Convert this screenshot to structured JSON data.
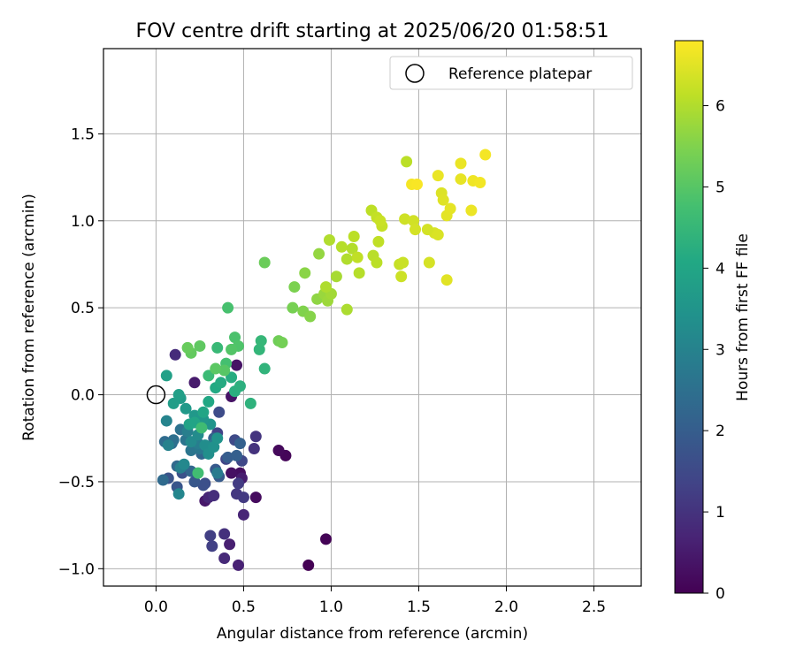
{
  "chart_data": {
    "type": "scatter",
    "title": "FOV centre drift starting at 2025/06/20 01:58:51",
    "xlabel": "Angular distance from reference (arcmin)",
    "ylabel": "Rotation from reference (arcmin)",
    "xlim": [
      -0.3,
      2.77
    ],
    "ylim": [
      -1.1,
      1.99
    ],
    "x_ticks": [
      0.0,
      0.5,
      1.0,
      1.5,
      2.0,
      2.5
    ],
    "x_tick_labels": [
      "0.0",
      "0.5",
      "1.0",
      "1.5",
      "2.0",
      "2.5"
    ],
    "y_ticks": [
      -1.0,
      -0.5,
      0.0,
      0.5,
      1.0,
      1.5
    ],
    "y_tick_labels": [
      "−1.0",
      "−0.5",
      "0.0",
      "0.5",
      "1.0",
      "1.5"
    ],
    "grid": true,
    "legend": {
      "placement": "upper-right",
      "entries": [
        {
          "label": "Reference platepar",
          "marker": "open-circle"
        }
      ]
    },
    "reference_point": {
      "x": 0.0,
      "y": 0.0
    },
    "colorbar": {
      "label": "Hours from first FF file",
      "colormap": "viridis",
      "range": [
        0,
        6.8
      ],
      "ticks": [
        0,
        1,
        2,
        3,
        4,
        5,
        6
      ],
      "tick_labels": [
        "0",
        "1",
        "2",
        "3",
        "4",
        "5",
        "6"
      ]
    },
    "points": [
      [
        0.87,
        -0.98,
        0.0
      ],
      [
        0.97,
        -0.83,
        0.05
      ],
      [
        0.74,
        -0.35,
        0.1
      ],
      [
        0.7,
        -0.32,
        0.15
      ],
      [
        0.57,
        -0.59,
        0.2
      ],
      [
        0.48,
        -0.45,
        0.25
      ],
      [
        0.43,
        -0.45,
        0.3
      ],
      [
        0.46,
        0.17,
        0.35
      ],
      [
        0.43,
        -0.01,
        0.35
      ],
      [
        0.28,
        -0.61,
        0.45
      ],
      [
        0.22,
        0.07,
        0.5
      ],
      [
        0.49,
        -0.48,
        0.55
      ],
      [
        0.42,
        -0.86,
        0.6
      ],
      [
        0.47,
        -0.98,
        0.65
      ],
      [
        0.5,
        -0.69,
        0.7
      ],
      [
        0.3,
        -0.59,
        0.75
      ],
      [
        0.39,
        -0.94,
        0.8
      ],
      [
        0.11,
        0.23,
        0.85
      ],
      [
        0.33,
        -0.58,
        0.9
      ],
      [
        0.39,
        -0.8,
        0.95
      ],
      [
        0.56,
        -0.31,
        1.0
      ],
      [
        0.57,
        -0.24,
        1.05
      ],
      [
        0.46,
        -0.57,
        1.1
      ],
      [
        0.5,
        -0.59,
        1.15
      ],
      [
        0.47,
        -0.51,
        1.2
      ],
      [
        0.31,
        -0.81,
        1.25
      ],
      [
        0.32,
        -0.87,
        1.3
      ],
      [
        0.35,
        -0.22,
        1.35
      ],
      [
        0.4,
        -0.37,
        1.4
      ],
      [
        0.49,
        -0.38,
        1.45
      ],
      [
        0.45,
        -0.26,
        1.5
      ],
      [
        0.36,
        -0.1,
        1.55
      ],
      [
        0.28,
        -0.51,
        1.6
      ],
      [
        0.27,
        -0.52,
        1.65
      ],
      [
        0.15,
        -0.45,
        1.7
      ],
      [
        0.07,
        -0.48,
        1.75
      ],
      [
        0.12,
        -0.53,
        1.8
      ],
      [
        0.22,
        -0.5,
        1.85
      ],
      [
        0.34,
        -0.43,
        1.9
      ],
      [
        0.36,
        -0.47,
        1.95
      ],
      [
        0.41,
        -0.36,
        2.0
      ],
      [
        0.46,
        -0.35,
        2.05
      ],
      [
        0.48,
        -0.28,
        2.1
      ],
      [
        0.33,
        -0.25,
        2.15
      ],
      [
        0.26,
        -0.34,
        2.2
      ],
      [
        0.2,
        -0.44,
        2.25
      ],
      [
        0.12,
        -0.41,
        2.3
      ],
      [
        0.04,
        -0.49,
        2.35
      ],
      [
        0.05,
        -0.27,
        2.4
      ],
      [
        0.09,
        -0.28,
        2.45
      ],
      [
        0.1,
        -0.26,
        2.5
      ],
      [
        0.14,
        -0.2,
        2.55
      ],
      [
        0.17,
        -0.26,
        2.6
      ],
      [
        0.2,
        -0.32,
        2.65
      ],
      [
        0.25,
        -0.31,
        2.7
      ],
      [
        0.32,
        -0.29,
        2.75
      ],
      [
        0.35,
        -0.45,
        2.8
      ],
      [
        0.24,
        -0.28,
        2.85
      ],
      [
        0.18,
        -0.21,
        2.9
      ],
      [
        0.14,
        -0.42,
        2.95
      ],
      [
        0.07,
        -0.29,
        3.0
      ],
      [
        0.06,
        -0.15,
        3.05
      ],
      [
        0.13,
        -0.57,
        3.1
      ],
      [
        0.16,
        -0.4,
        3.15
      ],
      [
        0.2,
        -0.27,
        3.2
      ],
      [
        0.24,
        -0.23,
        3.25
      ],
      [
        0.28,
        -0.29,
        3.3
      ],
      [
        0.3,
        -0.34,
        3.35
      ],
      [
        0.33,
        -0.3,
        3.4
      ],
      [
        0.35,
        -0.25,
        3.45
      ],
      [
        0.31,
        -0.17,
        3.5
      ],
      [
        0.27,
        -0.14,
        3.55
      ],
      [
        0.22,
        -0.12,
        3.6
      ],
      [
        0.17,
        -0.08,
        3.65
      ],
      [
        0.14,
        -0.02,
        3.7
      ],
      [
        0.1,
        -0.05,
        3.75
      ],
      [
        0.13,
        0.0,
        3.8
      ],
      [
        0.06,
        0.11,
        3.85
      ],
      [
        0.19,
        -0.17,
        3.9
      ],
      [
        0.22,
        -0.16,
        3.95
      ],
      [
        0.27,
        -0.1,
        4.0
      ],
      [
        0.3,
        -0.04,
        4.05
      ],
      [
        0.34,
        0.04,
        4.1
      ],
      [
        0.37,
        0.07,
        4.15
      ],
      [
        0.43,
        0.1,
        4.2
      ],
      [
        0.45,
        0.02,
        4.25
      ],
      [
        0.48,
        0.05,
        4.3
      ],
      [
        0.54,
        -0.05,
        4.35
      ],
      [
        0.62,
        0.15,
        4.4
      ],
      [
        0.59,
        0.26,
        4.45
      ],
      [
        0.6,
        0.31,
        4.5
      ],
      [
        0.35,
        0.27,
        4.55
      ],
      [
        0.3,
        0.11,
        4.6
      ],
      [
        0.26,
        -0.19,
        4.65
      ],
      [
        0.24,
        -0.45,
        4.7
      ],
      [
        0.4,
        0.18,
        4.75
      ],
      [
        0.41,
        0.5,
        4.8
      ],
      [
        0.45,
        0.33,
        4.85
      ],
      [
        0.47,
        0.28,
        4.9
      ],
      [
        0.43,
        0.26,
        4.95
      ],
      [
        0.39,
        0.14,
        5.0
      ],
      [
        0.34,
        0.15,
        5.05
      ],
      [
        0.25,
        0.28,
        5.1
      ],
      [
        0.2,
        0.24,
        5.15
      ],
      [
        0.18,
        0.27,
        5.2
      ],
      [
        0.62,
        0.76,
        5.25
      ],
      [
        0.7,
        0.31,
        5.3
      ],
      [
        0.72,
        0.3,
        5.35
      ],
      [
        0.78,
        0.5,
        5.4
      ],
      [
        0.79,
        0.62,
        5.45
      ],
      [
        0.84,
        0.48,
        5.5
      ],
      [
        0.88,
        0.45,
        5.55
      ],
      [
        0.85,
        0.7,
        5.6
      ],
      [
        0.92,
        0.55,
        5.65
      ],
      [
        0.93,
        0.81,
        5.7
      ],
      [
        0.96,
        0.58,
        5.75
      ],
      [
        0.98,
        0.54,
        5.8
      ],
      [
        1.0,
        0.58,
        5.85
      ],
      [
        1.03,
        0.68,
        5.9
      ],
      [
        1.09,
        0.49,
        5.95
      ],
      [
        0.97,
        0.62,
        5.97
      ],
      [
        1.09,
        0.78,
        6.0
      ],
      [
        1.12,
        0.84,
        6.02
      ],
      [
        1.16,
        0.7,
        6.05
      ],
      [
        1.24,
        0.8,
        6.08
      ],
      [
        1.26,
        0.76,
        6.1
      ],
      [
        1.23,
        1.06,
        6.12
      ],
      [
        1.27,
        0.88,
        6.15
      ],
      [
        1.26,
        1.02,
        6.18
      ],
      [
        1.29,
        0.97,
        6.2
      ],
      [
        1.39,
        0.75,
        6.22
      ],
      [
        1.41,
        0.76,
        6.25
      ],
      [
        1.4,
        0.68,
        6.28
      ],
      [
        1.42,
        1.01,
        6.3
      ],
      [
        1.47,
        1.0,
        6.33
      ],
      [
        1.48,
        0.95,
        6.36
      ],
      [
        1.56,
        0.76,
        6.38
      ],
      [
        1.59,
        0.93,
        6.4
      ],
      [
        1.61,
        0.92,
        6.42
      ],
      [
        1.63,
        1.16,
        6.45
      ],
      [
        1.64,
        1.12,
        6.48
      ],
      [
        1.66,
        0.66,
        6.5
      ],
      [
        1.66,
        1.03,
        6.52
      ],
      [
        1.68,
        1.07,
        6.55
      ],
      [
        1.74,
        1.24,
        6.57
      ],
      [
        1.74,
        1.33,
        6.6
      ],
      [
        1.8,
        1.06,
        6.62
      ],
      [
        1.81,
        1.23,
        6.65
      ],
      [
        1.85,
        1.22,
        6.68
      ],
      [
        1.88,
        1.38,
        6.7
      ],
      [
        1.43,
        1.34,
        6.1
      ],
      [
        1.46,
        1.21,
        6.72
      ],
      [
        1.49,
        1.21,
        6.75
      ],
      [
        1.61,
        1.26,
        6.6
      ],
      [
        0.99,
        0.89,
        6.0
      ],
      [
        1.06,
        0.85,
        6.05
      ],
      [
        1.13,
        0.91,
        6.1
      ],
      [
        1.15,
        0.79,
        6.15
      ],
      [
        1.28,
        1.0,
        6.25
      ],
      [
        1.55,
        0.95,
        6.35
      ]
    ]
  }
}
